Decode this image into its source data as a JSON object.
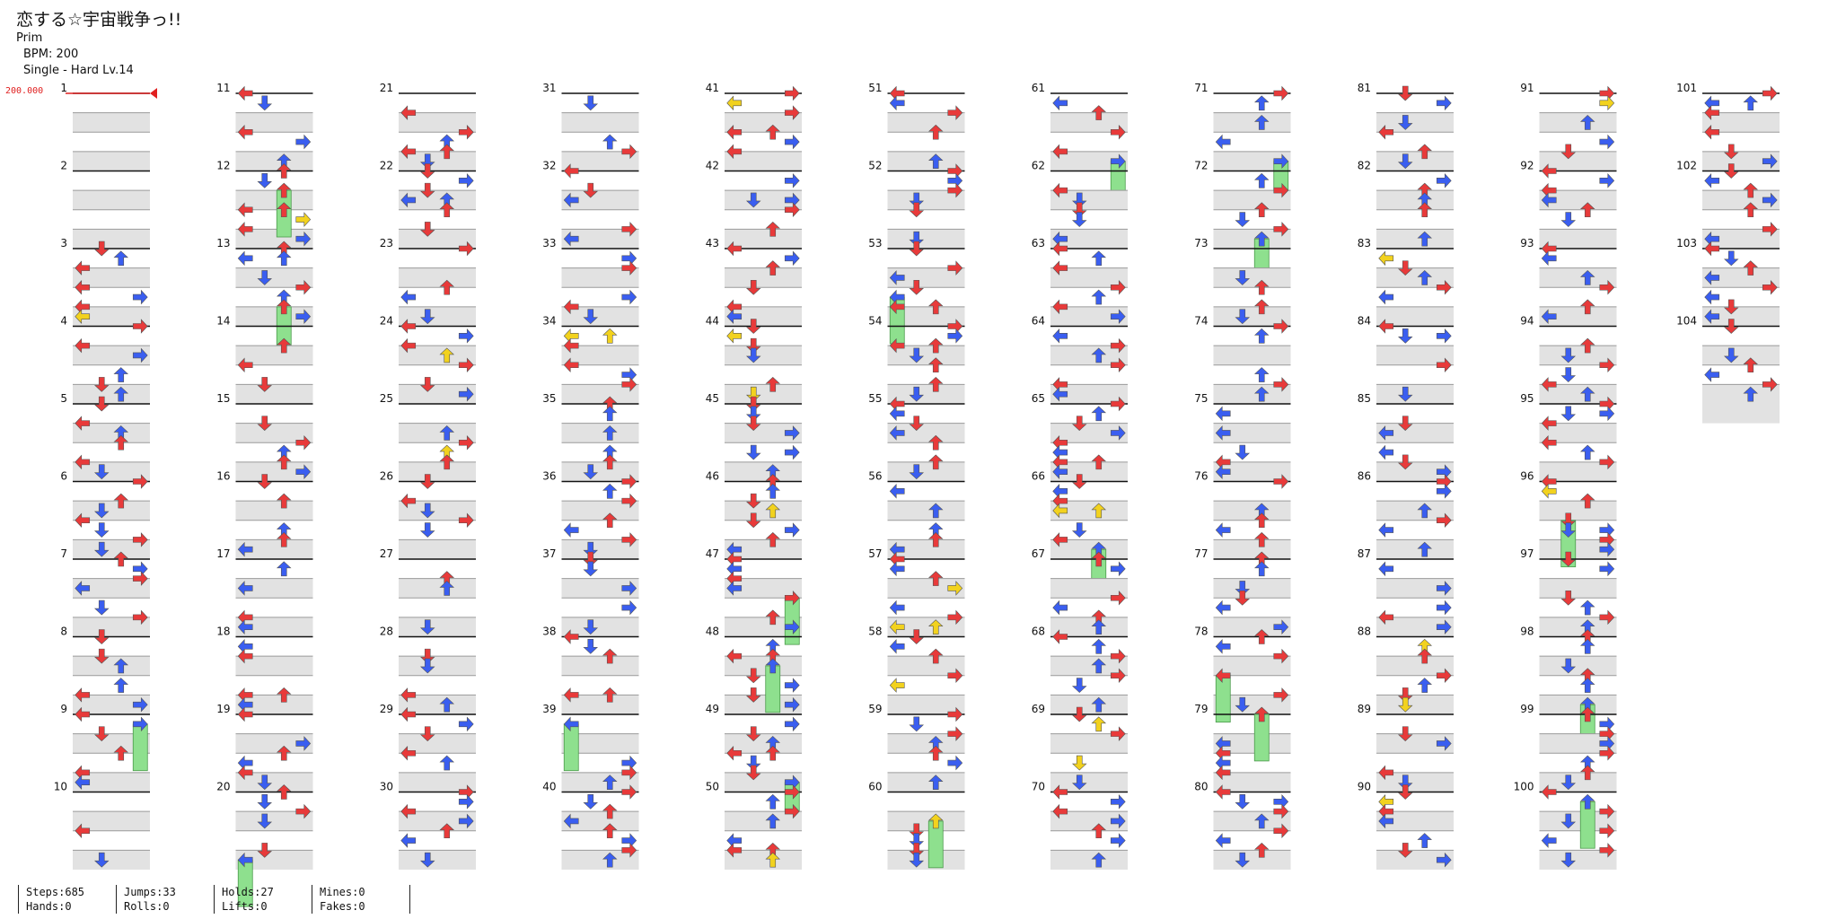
{
  "song": {
    "title": "恋する☆宇宙戦争っ!!",
    "artist": "Prim",
    "bpm_text": "BPM: 200",
    "difficulty_text": "Single - Hard  Lv.14"
  },
  "bpm_marker": "200.000",
  "chart": {
    "measure_count": 104,
    "measures_per_column": 10,
    "column_labels_every": 1
  },
  "stats": {
    "steps": "Steps:685",
    "hands": "Hands:0",
    "jumps": "Jumps:33",
    "rolls": "Rolls:0",
    "holds": "Holds:27",
    "lifts": "Lifts:0",
    "mines": "Mines:0",
    "fakes": "Fakes:0"
  },
  "colors": {
    "quarter_note": "#e83a3a",
    "eighth_note": "#3a5ef0",
    "sixteenth_note": "#f2d21e",
    "hold_body": "#8ee08e",
    "lane_shade": "#e2e2e2",
    "bpm_line": "#e02020"
  },
  "icons": {
    "left": "arrow-left-icon",
    "down": "arrow-down-icon",
    "up": "arrow-up-icon",
    "right": "arrow-right-icon"
  }
}
